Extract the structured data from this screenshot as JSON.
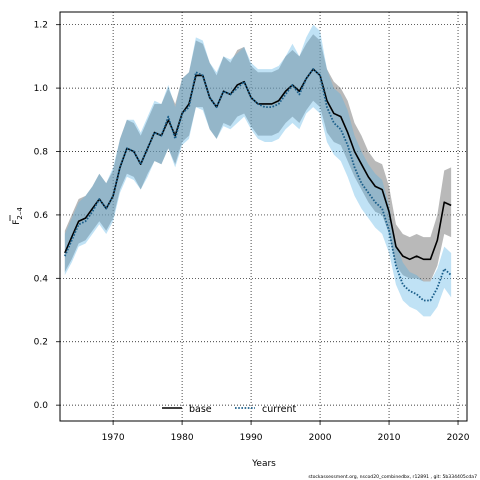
{
  "chart_data": {
    "type": "line",
    "title": "",
    "xlabel": "Years",
    "ylabel": "F̄ 2–4",
    "xlim": [
      1962.3,
      2021.3
    ],
    "ylim": [
      -0.05,
      1.24
    ],
    "xticks": [
      1970,
      1980,
      1990,
      2000,
      2010,
      2020
    ],
    "yticks": [
      0.0,
      0.2,
      0.4,
      0.6,
      0.8,
      1.0,
      1.2
    ],
    "xtick_labels": [
      "1970",
      "1980",
      "1990",
      "2000",
      "2010",
      "2020"
    ],
    "ytick_labels": [
      "0.0",
      "0.2",
      "0.4",
      "0.6",
      "0.8",
      "1.0",
      "1.2"
    ],
    "grid": true,
    "legend_position": "bottom-center",
    "footnote": "stockassessment.org, nscod20_combinedbx, r12891 , git: 5b334405cda7",
    "x": [
      1963,
      1964,
      1965,
      1966,
      1967,
      1968,
      1969,
      1970,
      1971,
      1972,
      1973,
      1974,
      1975,
      1976,
      1977,
      1978,
      1979,
      1980,
      1981,
      1982,
      1983,
      1984,
      1985,
      1986,
      1987,
      1988,
      1989,
      1990,
      1991,
      1992,
      1993,
      1994,
      1995,
      1996,
      1997,
      1998,
      1999,
      2000,
      2001,
      2002,
      2003,
      2004,
      2005,
      2006,
      2007,
      2008,
      2009,
      2010,
      2011,
      2012,
      2013,
      2014,
      2015,
      2016,
      2017,
      2018,
      2019
    ],
    "series": [
      {
        "name": "base",
        "color": "#000000",
        "band_color": "#7f7f7f",
        "line_style": "solid",
        "values": [
          0.48,
          0.53,
          0.58,
          0.59,
          0.62,
          0.65,
          0.62,
          0.66,
          0.75,
          0.81,
          0.8,
          0.76,
          0.81,
          0.86,
          0.85,
          0.9,
          0.85,
          0.92,
          0.95,
          1.04,
          1.04,
          0.97,
          0.94,
          0.99,
          0.98,
          1.01,
          1.02,
          0.97,
          0.95,
          0.95,
          0.95,
          0.96,
          0.99,
          1.01,
          0.99,
          1.03,
          1.06,
          1.04,
          0.96,
          0.92,
          0.91,
          0.86,
          0.8,
          0.76,
          0.72,
          0.69,
          0.68,
          0.61,
          0.5,
          0.47,
          0.46,
          0.47,
          0.46,
          0.46,
          0.52,
          0.64,
          0.63
        ],
        "lower": [
          0.42,
          0.46,
          0.51,
          0.52,
          0.55,
          0.58,
          0.55,
          0.59,
          0.68,
          0.73,
          0.72,
          0.68,
          0.73,
          0.77,
          0.76,
          0.81,
          0.76,
          0.83,
          0.85,
          0.94,
          0.94,
          0.87,
          0.84,
          0.89,
          0.88,
          0.91,
          0.92,
          0.88,
          0.85,
          0.85,
          0.85,
          0.86,
          0.89,
          0.91,
          0.89,
          0.93,
          0.96,
          0.94,
          0.86,
          0.83,
          0.82,
          0.77,
          0.72,
          0.68,
          0.64,
          0.61,
          0.6,
          0.54,
          0.44,
          0.41,
          0.4,
          0.4,
          0.39,
          0.39,
          0.44,
          0.54,
          0.53
        ],
        "upper": [
          0.55,
          0.6,
          0.65,
          0.66,
          0.69,
          0.73,
          0.7,
          0.74,
          0.84,
          0.9,
          0.89,
          0.85,
          0.9,
          0.95,
          0.95,
          1.0,
          0.95,
          1.03,
          1.05,
          1.15,
          1.14,
          1.08,
          1.04,
          1.1,
          1.08,
          1.12,
          1.13,
          1.07,
          1.05,
          1.05,
          1.05,
          1.06,
          1.1,
          1.12,
          1.1,
          1.14,
          1.17,
          1.15,
          1.06,
          1.02,
          1.0,
          0.96,
          0.89,
          0.85,
          0.8,
          0.77,
          0.76,
          0.69,
          0.57,
          0.54,
          0.53,
          0.54,
          0.53,
          0.53,
          0.6,
          0.74,
          0.75
        ]
      },
      {
        "name": "current",
        "color": "#1a5e8a",
        "band_color": "#5ab4e6",
        "line_style": "dotted",
        "values": [
          0.47,
          0.52,
          0.57,
          0.58,
          0.61,
          0.65,
          0.62,
          0.66,
          0.75,
          0.81,
          0.8,
          0.76,
          0.81,
          0.86,
          0.85,
          0.91,
          0.84,
          0.92,
          0.94,
          1.05,
          1.04,
          0.97,
          0.94,
          0.99,
          0.98,
          1.0,
          1.02,
          0.97,
          0.95,
          0.94,
          0.94,
          0.95,
          0.98,
          1.01,
          0.98,
          1.03,
          1.06,
          1.04,
          0.94,
          0.89,
          0.87,
          0.82,
          0.75,
          0.7,
          0.67,
          0.64,
          0.62,
          0.55,
          0.44,
          0.38,
          0.36,
          0.35,
          0.33,
          0.33,
          0.37,
          0.43,
          0.41
        ],
        "lower": [
          0.41,
          0.45,
          0.5,
          0.51,
          0.54,
          0.57,
          0.54,
          0.58,
          0.67,
          0.72,
          0.71,
          0.68,
          0.72,
          0.77,
          0.76,
          0.81,
          0.75,
          0.82,
          0.84,
          0.94,
          0.93,
          0.87,
          0.84,
          0.88,
          0.87,
          0.89,
          0.91,
          0.87,
          0.84,
          0.83,
          0.83,
          0.84,
          0.87,
          0.89,
          0.87,
          0.92,
          0.94,
          0.92,
          0.83,
          0.79,
          0.77,
          0.72,
          0.66,
          0.62,
          0.59,
          0.56,
          0.54,
          0.48,
          0.38,
          0.33,
          0.31,
          0.3,
          0.28,
          0.28,
          0.31,
          0.37,
          0.34
        ],
        "upper": [
          0.54,
          0.59,
          0.64,
          0.66,
          0.69,
          0.73,
          0.7,
          0.75,
          0.84,
          0.9,
          0.9,
          0.86,
          0.91,
          0.96,
          0.95,
          1.01,
          0.94,
          1.03,
          1.05,
          1.16,
          1.15,
          1.08,
          1.05,
          1.1,
          1.09,
          1.11,
          1.13,
          1.08,
          1.06,
          1.06,
          1.06,
          1.07,
          1.1,
          1.14,
          1.1,
          1.16,
          1.2,
          1.18,
          1.06,
          1.0,
          0.98,
          0.93,
          0.85,
          0.8,
          0.76,
          0.73,
          0.71,
          0.63,
          0.51,
          0.45,
          0.42,
          0.41,
          0.39,
          0.39,
          0.43,
          0.5,
          0.48
        ]
      }
    ]
  }
}
